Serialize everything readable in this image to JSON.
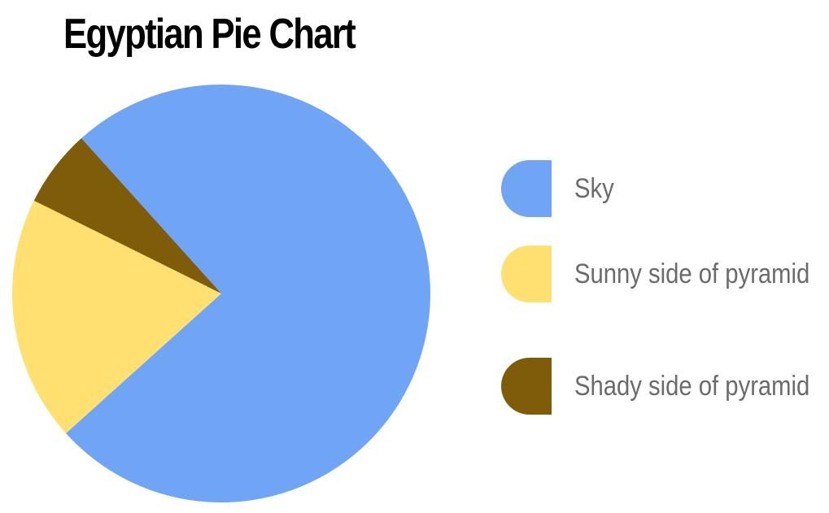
{
  "chart_data": {
    "type": "pie",
    "title": "Egyptian Pie Chart",
    "start_angle_deg": 132,
    "direction": "clockwise",
    "slices": [
      {
        "label": "Sky",
        "value": 75,
        "color": "#70a5f6"
      },
      {
        "label": "Sunny side of pyramid",
        "value": 19,
        "color": "#ffe070"
      },
      {
        "label": "Shady side of pyramid",
        "value": 6,
        "color": "#7e5c09"
      }
    ],
    "legend": {
      "placement": "right"
    }
  }
}
